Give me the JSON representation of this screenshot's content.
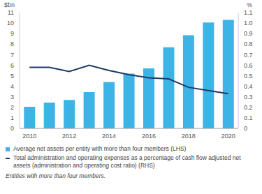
{
  "chart_data": {
    "type": "bar",
    "y_label": "$bn",
    "y2_label": "%",
    "footnote": "Entities with more than four members.",
    "legend": "bottom",
    "grid": false,
    "categories": [
      "2010",
      null,
      "2012",
      null,
      "2014",
      null,
      "2016",
      null,
      "2018",
      null,
      "2020"
    ],
    "ylim": [
      0,
      11
    ],
    "yticks": [
      0,
      1,
      2,
      3,
      4,
      5,
      6,
      7,
      8,
      9,
      10,
      11
    ],
    "y2lim": [
      0,
      1.1
    ],
    "y2ticks": [
      0,
      0.1,
      0.2,
      0.3,
      0.4,
      0.5,
      0.6,
      0.7,
      0.8,
      0.9,
      {
        "value": 1,
        "label": "1.0"
      },
      1.1
    ],
    "series": [
      {
        "name": "Average net assets per entity with more than four members (LHS)",
        "type": "bar",
        "color": "#3db4e6",
        "values": [
          2.05,
          2.45,
          2.7,
          3.45,
          4.4,
          5.2,
          5.7,
          7.7,
          8.85,
          10.05,
          10.3
        ]
      },
      {
        "name": "Total administration and operating expenses as a percentage of cash flow adjusted net assets (administration and operating cost ratio) (RHS)",
        "type": "line",
        "axis": "y2",
        "color": "#1f3a68",
        "values": [
          0.58,
          0.58,
          0.54,
          0.6,
          0.55,
          0.51,
          0.48,
          0.47,
          0.39,
          0.36,
          0.33
        ]
      }
    ]
  }
}
